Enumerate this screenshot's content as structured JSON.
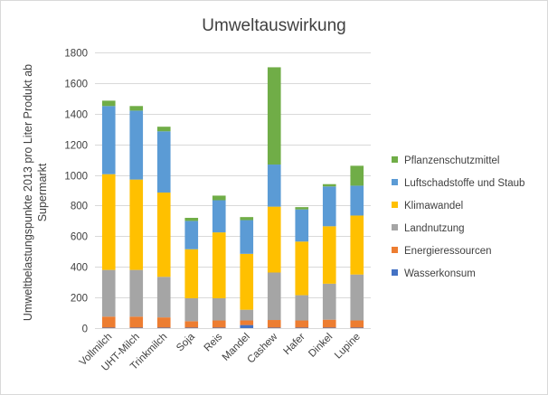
{
  "chart_data": {
    "type": "bar",
    "stacked": true,
    "title": "Umweltauswirkung",
    "xlabel": "",
    "ylabel": "Umweltbelastungspunkte 2013 pro Liter Produkt ab Supermarkt",
    "ylabel_lines": [
      "Umweltbelastungspunkte 2013 pro Liter Produkt ab",
      "Supermarkt"
    ],
    "ylim": [
      0,
      1800
    ],
    "yticks": [
      0,
      200,
      400,
      600,
      800,
      1000,
      1200,
      1400,
      1600,
      1800
    ],
    "ytick_labels": [
      "0",
      "200",
      "400",
      "600",
      "800",
      "1000",
      "1200",
      "1400",
      "1600",
      "1800"
    ],
    "grid": true,
    "legend_position": "right",
    "categories": [
      "Vollmilch",
      "UHT-Milch",
      "Trinkmilch",
      "Soja",
      "Reis",
      "Mandel",
      "Cashew",
      "Hafer",
      "Dinkel",
      "Lupine"
    ],
    "series": [
      {
        "name": "Wasserkonsum",
        "color": "#4472c4",
        "values": [
          3,
          3,
          3,
          3,
          3,
          20,
          3,
          3,
          3,
          3
        ]
      },
      {
        "name": "Energieressourcen",
        "color": "#ed7d31",
        "values": [
          72,
          72,
          67,
          42,
          47,
          30,
          50,
          47,
          52,
          47
        ]
      },
      {
        "name": "Landnutzung",
        "color": "#a5a5a5",
        "values": [
          305,
          305,
          265,
          150,
          145,
          70,
          310,
          165,
          235,
          300
        ]
      },
      {
        "name": "Klimawandel",
        "color": "#ffc000",
        "values": [
          625,
          590,
          550,
          320,
          430,
          365,
          430,
          350,
          375,
          385
        ]
      },
      {
        "name": "Luftschadstoffe und Staub",
        "color": "#5b9bd5",
        "values": [
          445,
          450,
          400,
          185,
          210,
          220,
          275,
          210,
          260,
          195
        ]
      },
      {
        "name": "Pflanzenschutzmittel",
        "color": "#70ad47",
        "values": [
          35,
          30,
          30,
          20,
          30,
          20,
          635,
          15,
          15,
          130
        ]
      }
    ]
  }
}
